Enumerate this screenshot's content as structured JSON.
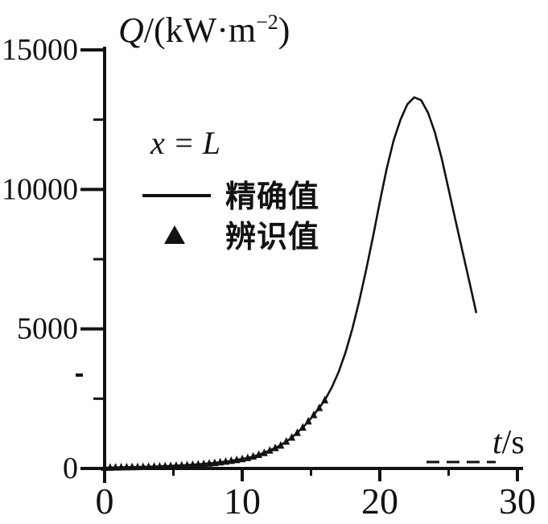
{
  "figure": {
    "background": "#ffffff",
    "ink_color": "#121212"
  },
  "chart_data": {
    "type": "line",
    "title": "",
    "annotation": "x = L",
    "x_axis": {
      "title": {
        "var": "t",
        "rest": "/s"
      },
      "range": [
        0,
        30
      ],
      "major_ticks": [
        0,
        10,
        20,
        30
      ],
      "minor_ticks": [
        5,
        15,
        25
      ],
      "tick_labels": [
        "0",
        "10",
        "20",
        "30"
      ]
    },
    "y_axis": {
      "title": {
        "var": "Q",
        "mid": "/(kW·m",
        "sup": "−2",
        "close": ")"
      },
      "range": [
        0,
        15000
      ],
      "major_ticks": [
        0,
        5000,
        10000,
        15000
      ],
      "minor_ticks": [
        2500,
        7500,
        12500
      ],
      "tick_labels": [
        "0",
        "5000",
        "10000",
        "15000"
      ]
    },
    "legend": [
      {
        "marker": "line",
        "label": "精确值"
      },
      {
        "marker": "triangle",
        "label": "辨识值"
      }
    ],
    "grid": false,
    "series": [
      {
        "name": "精确值",
        "type": "line",
        "points": [
          [
            0,
            30
          ],
          [
            1,
            38
          ],
          [
            2,
            48
          ],
          [
            3,
            60
          ],
          [
            4,
            75
          ],
          [
            5,
            95
          ],
          [
            6,
            120
          ],
          [
            7,
            155
          ],
          [
            8,
            200
          ],
          [
            9,
            260
          ],
          [
            10,
            340
          ],
          [
            10.5,
            390
          ],
          [
            11,
            460
          ],
          [
            11.5,
            545
          ],
          [
            12,
            645
          ],
          [
            12.5,
            760
          ],
          [
            13,
            900
          ],
          [
            13.5,
            1070
          ],
          [
            14,
            1280
          ],
          [
            14.5,
            1520
          ],
          [
            15,
            1800
          ],
          [
            15.5,
            2110
          ],
          [
            16,
            2450
          ],
          [
            16.5,
            2900
          ],
          [
            17,
            3450
          ],
          [
            17.5,
            4150
          ],
          [
            18,
            5000
          ],
          [
            18.5,
            6000
          ],
          [
            19,
            7100
          ],
          [
            19.5,
            8300
          ],
          [
            20,
            9550
          ],
          [
            20.5,
            10750
          ],
          [
            21,
            11750
          ],
          [
            21.5,
            12500
          ],
          [
            22,
            13050
          ],
          [
            22.5,
            13300
          ],
          [
            23,
            13200
          ],
          [
            23.5,
            12750
          ],
          [
            24,
            12050
          ],
          [
            24.5,
            11100
          ],
          [
            25,
            10000
          ],
          [
            25.5,
            8900
          ],
          [
            26,
            7800
          ],
          [
            26.5,
            6700
          ],
          [
            27,
            5600
          ]
        ]
      },
      {
        "name": "辨识值",
        "type": "scatter",
        "marker": "triangle",
        "points": [
          [
            0,
            30
          ],
          [
            0.4,
            34
          ],
          [
            0.8,
            38
          ],
          [
            1.2,
            42
          ],
          [
            1.6,
            46
          ],
          [
            2,
            50
          ],
          [
            2.4,
            54
          ],
          [
            2.8,
            58
          ],
          [
            3.2,
            63
          ],
          [
            3.6,
            69
          ],
          [
            4,
            75
          ],
          [
            4.4,
            83
          ],
          [
            4.8,
            91
          ],
          [
            5.2,
            100
          ],
          [
            5.6,
            110
          ],
          [
            6,
            120
          ],
          [
            6.4,
            134
          ],
          [
            6.8,
            148
          ],
          [
            7.2,
            164
          ],
          [
            7.6,
            182
          ],
          [
            8,
            200
          ],
          [
            8.4,
            224
          ],
          [
            8.8,
            248
          ],
          [
            9.2,
            276
          ],
          [
            9.6,
            308
          ],
          [
            10,
            340
          ],
          [
            10.4,
            380
          ],
          [
            10.8,
            432
          ],
          [
            11.2,
            492
          ],
          [
            11.6,
            560
          ],
          [
            12,
            645
          ],
          [
            12.4,
            736
          ],
          [
            12.8,
            826
          ],
          [
            13.2,
            966
          ],
          [
            13.6,
            1110
          ],
          [
            14,
            1280
          ],
          [
            14.4,
            1470
          ],
          [
            14.8,
            1690
          ],
          [
            15.2,
            1920
          ],
          [
            15.6,
            2170
          ],
          [
            16,
            2450
          ]
        ]
      }
    ]
  }
}
